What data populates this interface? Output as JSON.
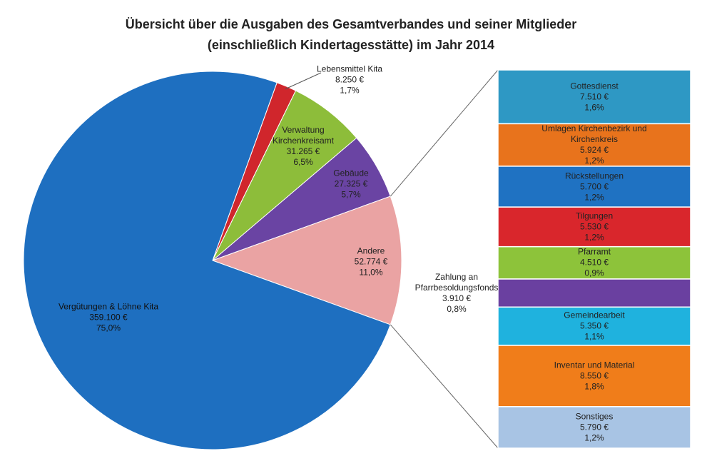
{
  "chart_data": {
    "type": "pie-of-bar",
    "title": [
      "Übersicht über die Ausgaben des Gesamtverbandes und seiner Mitglieder",
      "(einschließlich Kindertagesstätte) im Jahr 2014"
    ],
    "pie": {
      "categories": [
        "Lebensmittel Kita",
        "Verwaltung Kirchenkreisamt",
        "Gebäude",
        "Andere",
        "Vergütungen & Löhne Kita"
      ],
      "values": [
        8250,
        31265,
        27325,
        52774,
        359100
      ],
      "value_labels": [
        "8.250 €",
        "31.265 €",
        "27.325 €",
        "52.774 €",
        "359.100 €"
      ],
      "percents": [
        1.7,
        6.5,
        5.7,
        11.0,
        75.0
      ],
      "percent_labels": [
        "1,7%",
        "6,5%",
        "5,7%",
        "11,0%",
        "75,0%"
      ],
      "colors": [
        "#d0262c",
        "#8dbd3a",
        "#6a44a3",
        "#eaa3a3",
        "#1e6fc0"
      ]
    },
    "bar": {
      "categories": [
        "Gottesdienst",
        "Umlagen Kirchenbezirk und Kirchenkreis",
        "Rückstellungen",
        "Tilgungen",
        "Pfarramt",
        "Zahlung an Pfarrbesoldungsfonds",
        "Gemeindearbeit",
        "Inventar und Material",
        "Sonstiges"
      ],
      "values": [
        7510,
        5924,
        5700,
        5530,
        4510,
        3910,
        5350,
        8550,
        5790
      ],
      "value_labels": [
        "7.510 €",
        "5.924 €",
        "5.700 €",
        "5.530 €",
        "4.510 €",
        "3.910 €",
        "5.350 €",
        "8.550 €",
        "5.790 €"
      ],
      "percents": [
        1.6,
        1.2,
        1.2,
        1.2,
        0.9,
        0.8,
        1.1,
        1.8,
        1.2
      ],
      "percent_labels": [
        "1,6%",
        "1,2%",
        "1,2%",
        "1,2%",
        "0,9%",
        "0,8%",
        "1,1%",
        "1,8%",
        "1,2%"
      ],
      "colors": [
        "#2e98c4",
        "#e8731c",
        "#1f72c2",
        "#d9262c",
        "#8dc33a",
        "#6a40a0",
        "#1fb2de",
        "#f07d1a",
        "#a8c4e4"
      ]
    }
  }
}
